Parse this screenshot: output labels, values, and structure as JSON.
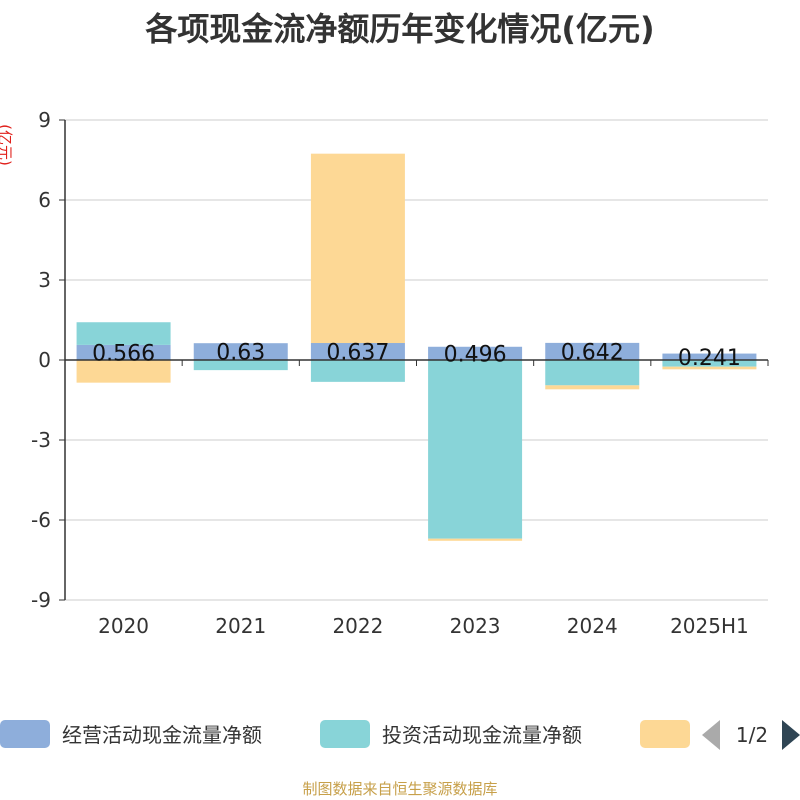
{
  "chart_data": {
    "type": "bar",
    "stacked": true,
    "title": "各项现金流净额历年变化情况(亿元)",
    "ylabel": "(亿元)",
    "categories": [
      "2020",
      "2021",
      "2022",
      "2023",
      "2024",
      "2025H1"
    ],
    "ylim": [
      -9,
      9
    ],
    "yticks": [
      -9,
      -6,
      -3,
      0,
      3,
      6,
      9
    ],
    "grid": true,
    "series": [
      {
        "name": "经营活动现金流量净额",
        "color": "#8eaedb",
        "values": [
          0.566,
          0.63,
          0.637,
          0.496,
          0.642,
          0.241
        ],
        "labels": [
          "0.566",
          "0.63",
          "0.637",
          "0.496",
          "0.642",
          "0.241"
        ]
      },
      {
        "name": "投资活动现金流量净额",
        "color": "#88d4d8",
        "values": [
          0.85,
          -0.38,
          -0.82,
          -6.7,
          -0.95,
          -0.25
        ]
      },
      {
        "name": "",
        "color": "#fdd895",
        "values": [
          -0.85,
          0.0,
          7.1,
          -0.08,
          -0.15,
          -0.1
        ]
      }
    ],
    "legend": {
      "placement": "bottom",
      "page": "1/2"
    }
  },
  "footer": {
    "source": "制图数据来自恒生聚源数据库"
  }
}
